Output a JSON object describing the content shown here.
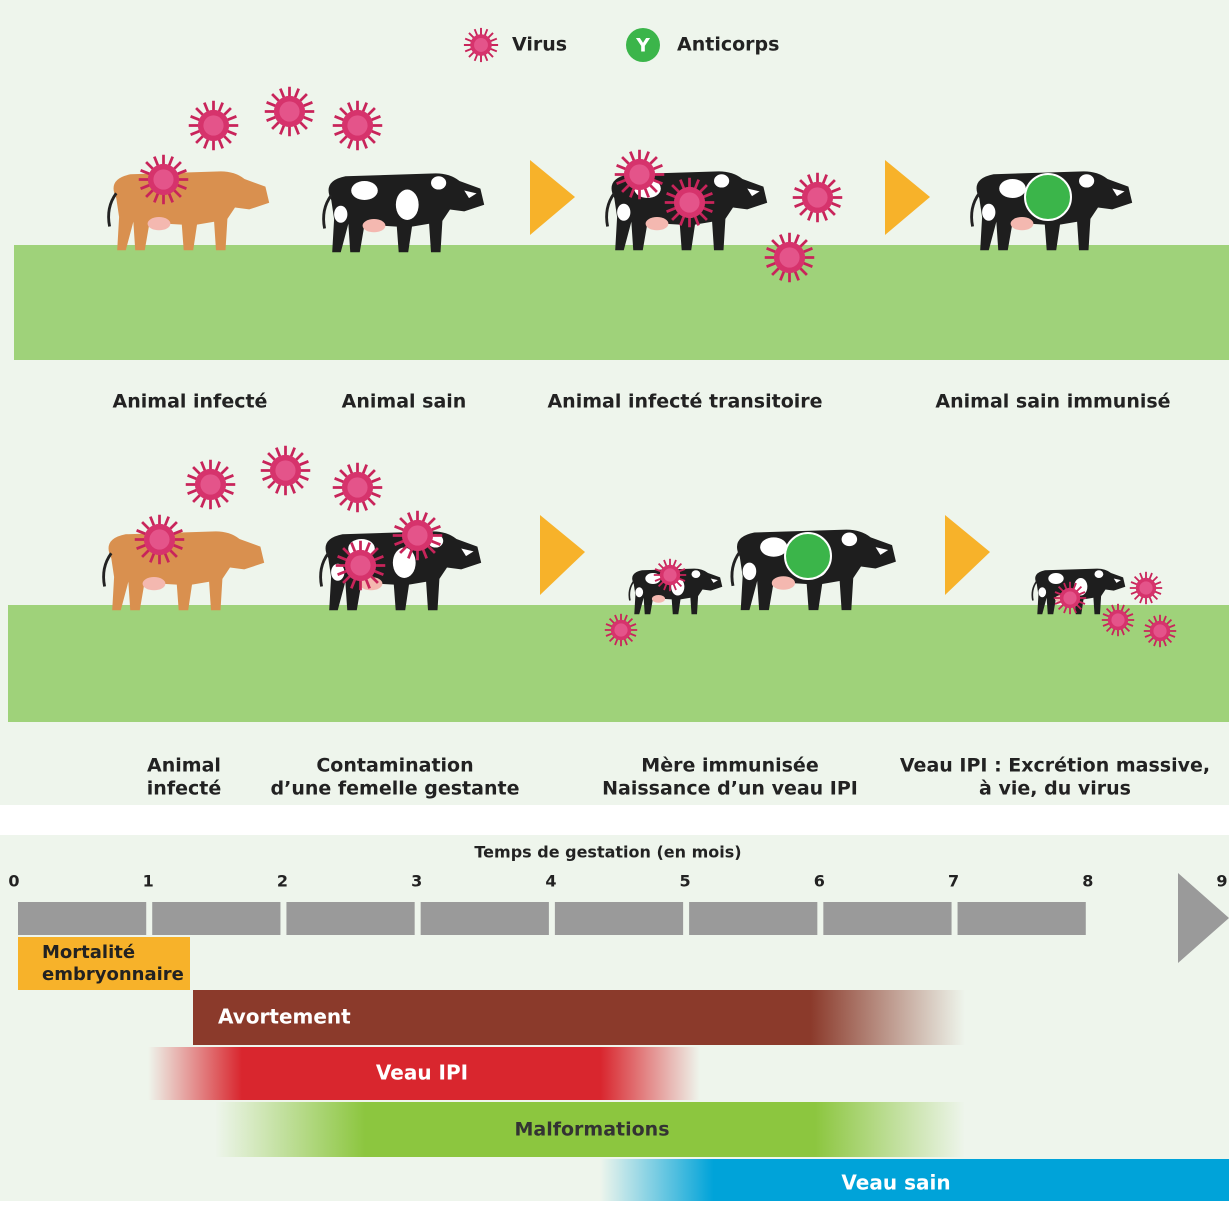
{
  "legend": {
    "virus": "Virus",
    "antibody": "Anticorps",
    "antibody_symbol": "Y"
  },
  "scene1": {
    "labels": [
      "Animal infecté",
      "Animal sain",
      "Animal infecté transitoire",
      "Animal sain immunisé"
    ]
  },
  "scene2": {
    "labels": [
      [
        "Animal",
        "infecté"
      ],
      [
        "Contamination",
        "d’une femelle gestante"
      ],
      [
        "Mère immunisée",
        "Naissance d’un veau IPI"
      ],
      [
        "Veau IPI : Excrétion massive,",
        "à vie, du virus"
      ]
    ]
  },
  "timeline": {
    "title": "Temps de gestation (en mois)",
    "ticks": [
      0,
      1,
      2,
      3,
      4,
      5,
      6,
      7,
      8,
      9
    ],
    "bars": [
      [
        "Mortalité",
        "embryonnaire"
      ],
      "Avortement",
      "Veau IPI",
      "Malformations",
      "Veau sain"
    ]
  }
}
